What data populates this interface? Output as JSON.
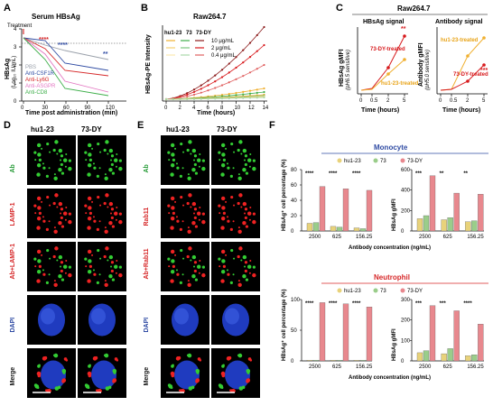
{
  "panel_labels": {
    "A": "A",
    "B": "B",
    "C": "C",
    "D": "D",
    "E": "E",
    "F": "F"
  },
  "colors": {
    "hu1": "#E8A317",
    "c73": "#3DAE49",
    "dy": "#D7191C",
    "pink": "#E8888E",
    "blue": "#2F4BA3",
    "red": "#D62728"
  },
  "panelA": {
    "title": "Serum HBsAg",
    "treatment": "Treatment",
    "ylabel": "HBsAg",
    "ylabel_unit": "(Log₁₀ IU/mL)",
    "xlabel": "Time post administration (min)",
    "xticks": [
      "0",
      "30",
      "60",
      "90",
      "120"
    ],
    "yticks": [
      "4",
      "3",
      "2",
      "1",
      "0"
    ],
    "legend": [
      {
        "label": "PBS",
        "color": "#9AA0AA"
      },
      {
        "label": "Anti-CSF1R",
        "color": "#2F4BA3"
      },
      {
        "label": "Anti-Ly6G",
        "color": "#D62728"
      },
      {
        "label": "Anti-ASGPR",
        "color": "#E377C2"
      },
      {
        "label": "Anti-CD8",
        "color": "#3DAE49"
      }
    ],
    "sig": [
      {
        "x": "10",
        "text": "****"
      },
      {
        "x": "30",
        "text": "****"
      },
      {
        "x": "120",
        "text": "**"
      }
    ]
  },
  "panelB": {
    "title": "Raw264.7",
    "ylabel": "HBsAg-PE Intensity",
    "xlabel": "Time (hours)",
    "xticks": [
      "0",
      "2",
      "4",
      "6",
      "8",
      "10",
      "12",
      "14"
    ],
    "legend_heads": [
      "hu1-23",
      "73",
      "73-DY"
    ],
    "legend_conc": [
      "10 μg/mL",
      "2 μg/mL",
      "0.4 μg/mL"
    ]
  },
  "panelC": {
    "title": "Raw264.7",
    "left": {
      "subtitle": "HBsAg signal",
      "ylabel": "HBsAg gMFI",
      "ylabel2": "(pH6.5 sensitive)",
      "xlabel": "Time (hours)",
      "xticks": [
        "0",
        "0.5",
        "2",
        "5"
      ],
      "ann_red": "73-DY-treated",
      "ann_orange": "hu1-23-treated",
      "sig": "**"
    },
    "right": {
      "subtitle": "Antibody signal",
      "ylabel": "Antibody gMFI",
      "ylabel2": "(pH5.0 sensitive)",
      "xlabel": "Time (hours)",
      "xticks": [
        "0",
        "0.5",
        "2",
        "5"
      ],
      "ann_orange": "hu1-23-treated",
      "ann_red": "73-DY-treated",
      "sig": "***"
    }
  },
  "panelD": {
    "columns": [
      "hu1-23",
      "73-DY"
    ],
    "rows": [
      "Ab",
      "LAMP-1",
      "Ab+LAMP-1",
      "DAPI",
      "Merge"
    ]
  },
  "panelE": {
    "columns": [
      "hu1-23",
      "73-DY"
    ],
    "rows": [
      "Ab",
      "Rab11",
      "Ab+Rab11",
      "DAPI",
      "Merge"
    ]
  },
  "panelF": {
    "legend": [
      "hu1-23",
      "73",
      "73-DY"
    ],
    "groups": [
      "2500",
      "625",
      "156.25"
    ],
    "xlabel": "Antibody concentration (ng/mL)",
    "monocyte": {
      "title": "Monocyte",
      "left": {
        "ylabel": "HBsAg⁺ cell percentage (%)",
        "yticks": [
          "0",
          "20",
          "40",
          "60",
          "80"
        ],
        "values": [
          [
            10,
            11,
            58
          ],
          [
            6,
            5,
            55
          ],
          [
            4,
            3,
            53
          ]
        ],
        "sig": [
          "****",
          "****",
          "****"
        ]
      },
      "right": {
        "ylabel": "HBsAg gMFI",
        "yticks": [
          "0",
          "200",
          "400",
          "600"
        ],
        "values": [
          [
            120,
            150,
            540
          ],
          [
            110,
            130,
            370
          ],
          [
            90,
            100,
            360
          ]
        ],
        "sig": [
          "***",
          "**",
          "**"
        ]
      }
    },
    "neutrophil": {
      "title": "Neutrophil",
      "left": {
        "ylabel": "HBsAg⁺ cell percentage (%)",
        "yticks": [
          "0",
          "50",
          "100"
        ],
        "values": [
          [
            1,
            1,
            95
          ],
          [
            1,
            1,
            93
          ],
          [
            1,
            1,
            88
          ]
        ],
        "sig": [
          "****",
          "****",
          "****"
        ]
      },
      "right": {
        "ylabel": "HBsAg gMFI",
        "yticks": [
          "0",
          "100",
          "200",
          "300"
        ],
        "values": [
          [
            40,
            50,
            270
          ],
          [
            35,
            60,
            245
          ],
          [
            25,
            30,
            180
          ]
        ],
        "sig": [
          "***",
          "***",
          "****"
        ]
      }
    }
  }
}
